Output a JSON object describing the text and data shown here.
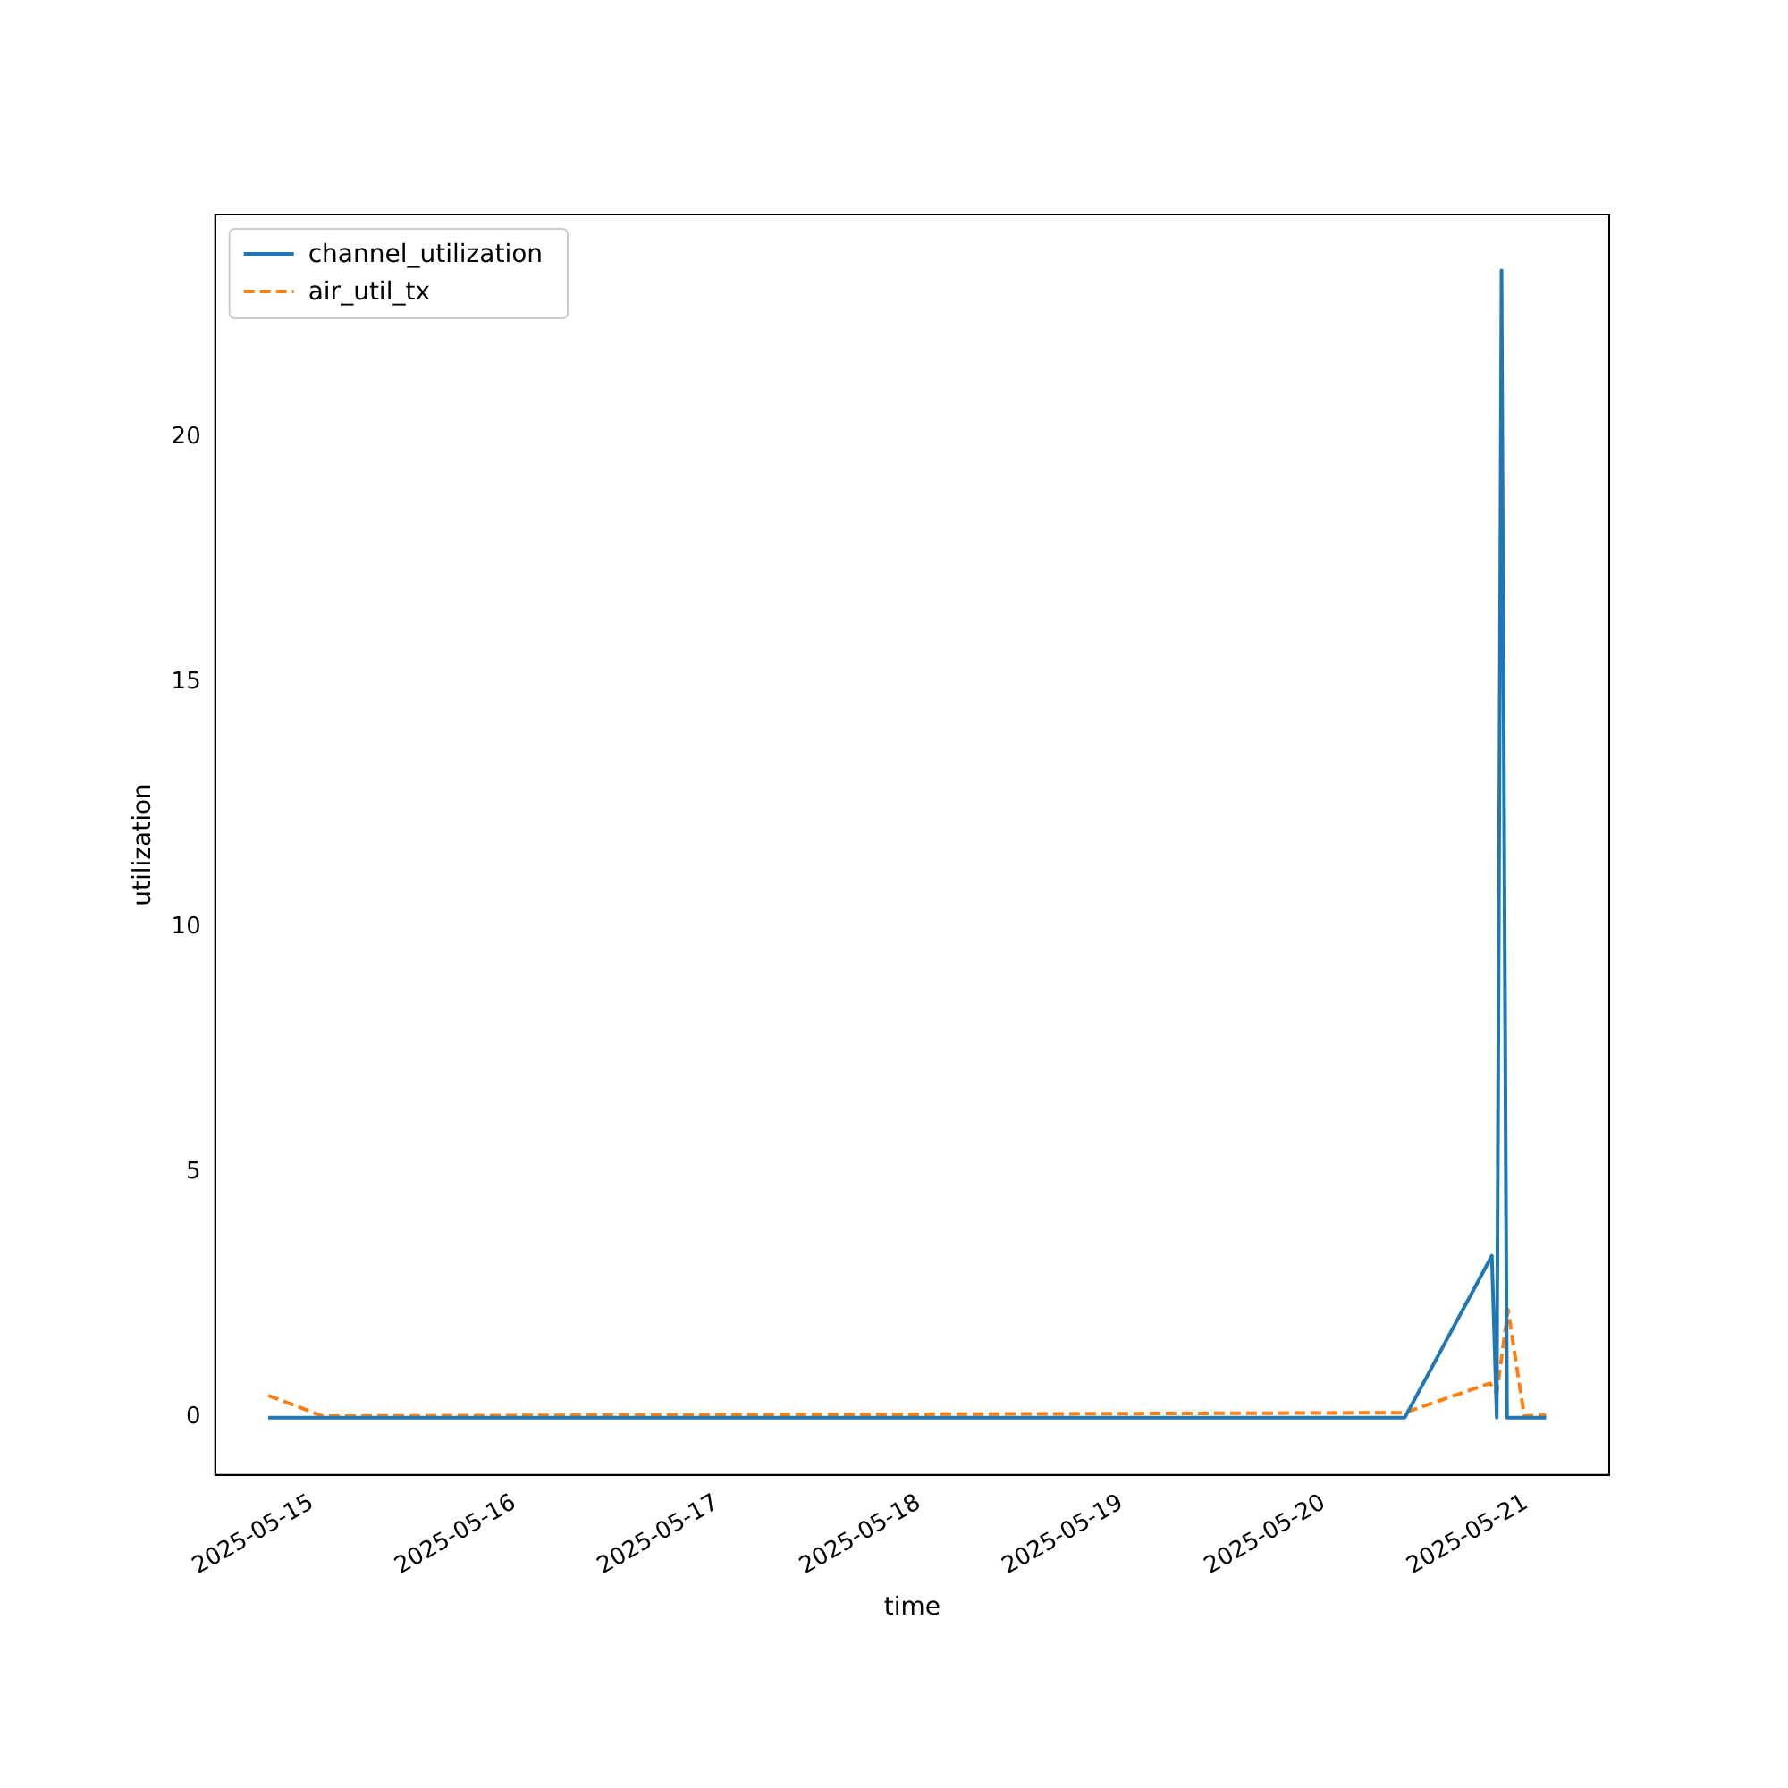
{
  "chart_data": {
    "type": "line",
    "xlabel": "time",
    "ylabel": "utilization",
    "xlim": [
      "2025-05-14T12:32",
      "2025-05-21T09:50"
    ],
    "ylim": [
      -1.17,
      24.54
    ],
    "xticks": [
      "2025-05-15",
      "2025-05-16",
      "2025-05-17",
      "2025-05-18",
      "2025-05-19",
      "2025-05-20",
      "2025-05-21"
    ],
    "yticks": [
      0,
      5,
      10,
      15,
      20
    ],
    "grid": false,
    "legend": "top left",
    "marker": "none",
    "series": [
      {
        "name": "channel_utilization",
        "color": "#1f77b4",
        "line_style": "solid",
        "x": [
          "2025-05-14T18:50",
          "2025-05-20T09:36",
          "2025-05-20T19:55",
          "2025-05-20T20:30",
          "2025-05-20T21:04",
          "2025-05-20T21:43",
          "2025-05-21T02:21"
        ],
        "values": [
          0,
          0,
          3.3,
          0,
          23.4,
          0,
          0
        ]
      },
      {
        "name": "air_util_tx",
        "color": "#ff7f0e",
        "line_style": "dashed",
        "x": [
          "2025-05-14T18:50",
          "2025-05-15T01:17",
          "2025-05-20T09:36",
          "2025-05-20T19:40",
          "2025-05-20T20:30",
          "2025-05-20T21:50",
          "2025-05-20T23:46",
          "2025-05-21T02:21"
        ],
        "values": [
          0.45,
          0.03,
          0.1,
          0.7,
          0.5,
          2.2,
          0.03,
          0.05
        ]
      }
    ]
  }
}
